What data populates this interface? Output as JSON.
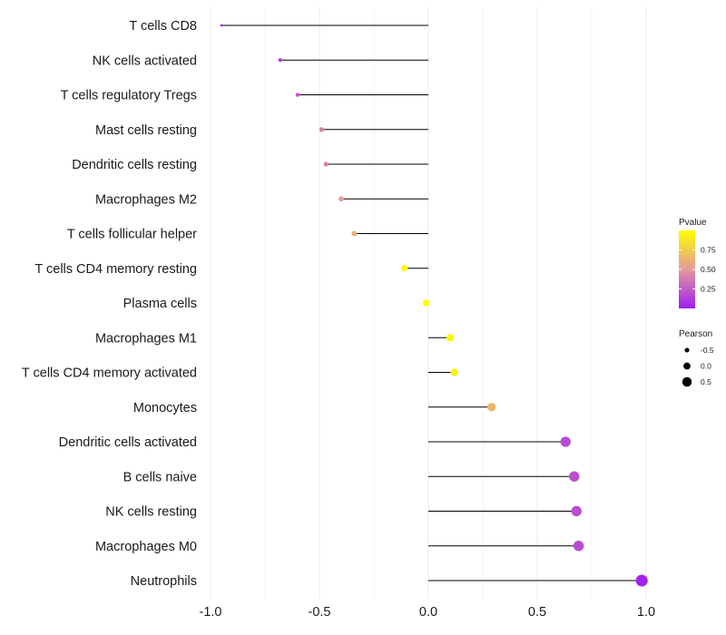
{
  "chart_data": {
    "type": "lollipop",
    "title": "",
    "xlabel": "",
    "ylabel": "",
    "xlim": [
      -1.0,
      1.0
    ],
    "xticks": [
      -1.0,
      -0.5,
      0.0,
      0.5,
      1.0
    ],
    "xtick_labels": [
      "-1.0",
      "-0.5",
      "0.0",
      "0.5",
      "1.0"
    ],
    "grid": true,
    "categories": [
      "T cells CD8",
      "NK cells activated",
      "T cells regulatory  Tregs",
      "Mast cells resting",
      "Dendritic cells resting",
      "Macrophages M2",
      "T cells follicular helper",
      "T cells CD4 memory resting",
      "Plasma cells",
      "Macrophages M1",
      "T cells CD4 memory activated",
      "Monocytes",
      "Dendritic cells activated",
      "B cells naive",
      "NK cells resting",
      "Macrophages M0",
      "Neutrophils"
    ],
    "pearson": [
      -0.95,
      -0.68,
      -0.6,
      -0.49,
      -0.47,
      -0.4,
      -0.34,
      -0.11,
      -0.01,
      0.1,
      0.12,
      0.29,
      0.63,
      0.67,
      0.68,
      0.69,
      0.98
    ],
    "pvalue": [
      0.0,
      0.12,
      0.23,
      0.4,
      0.42,
      0.52,
      0.6,
      0.97,
      1.0,
      0.95,
      0.93,
      0.65,
      0.18,
      0.2,
      0.19,
      0.18,
      0.02
    ],
    "color_legend": {
      "title": "Pvalue",
      "ticks": [
        0.25,
        0.5,
        0.75
      ],
      "tick_labels": [
        "0.25",
        "0.50",
        "0.75"
      ],
      "range": [
        0.0,
        1.0
      ],
      "low_color": "#a020f0",
      "mid_color": "#e49a9a",
      "high_color": "#ffff00"
    },
    "size_legend": {
      "title": "Pearson",
      "values": [
        -0.5,
        0.0,
        0.5
      ],
      "labels": [
        "-0.5",
        "0.0",
        "0.5"
      ]
    }
  }
}
